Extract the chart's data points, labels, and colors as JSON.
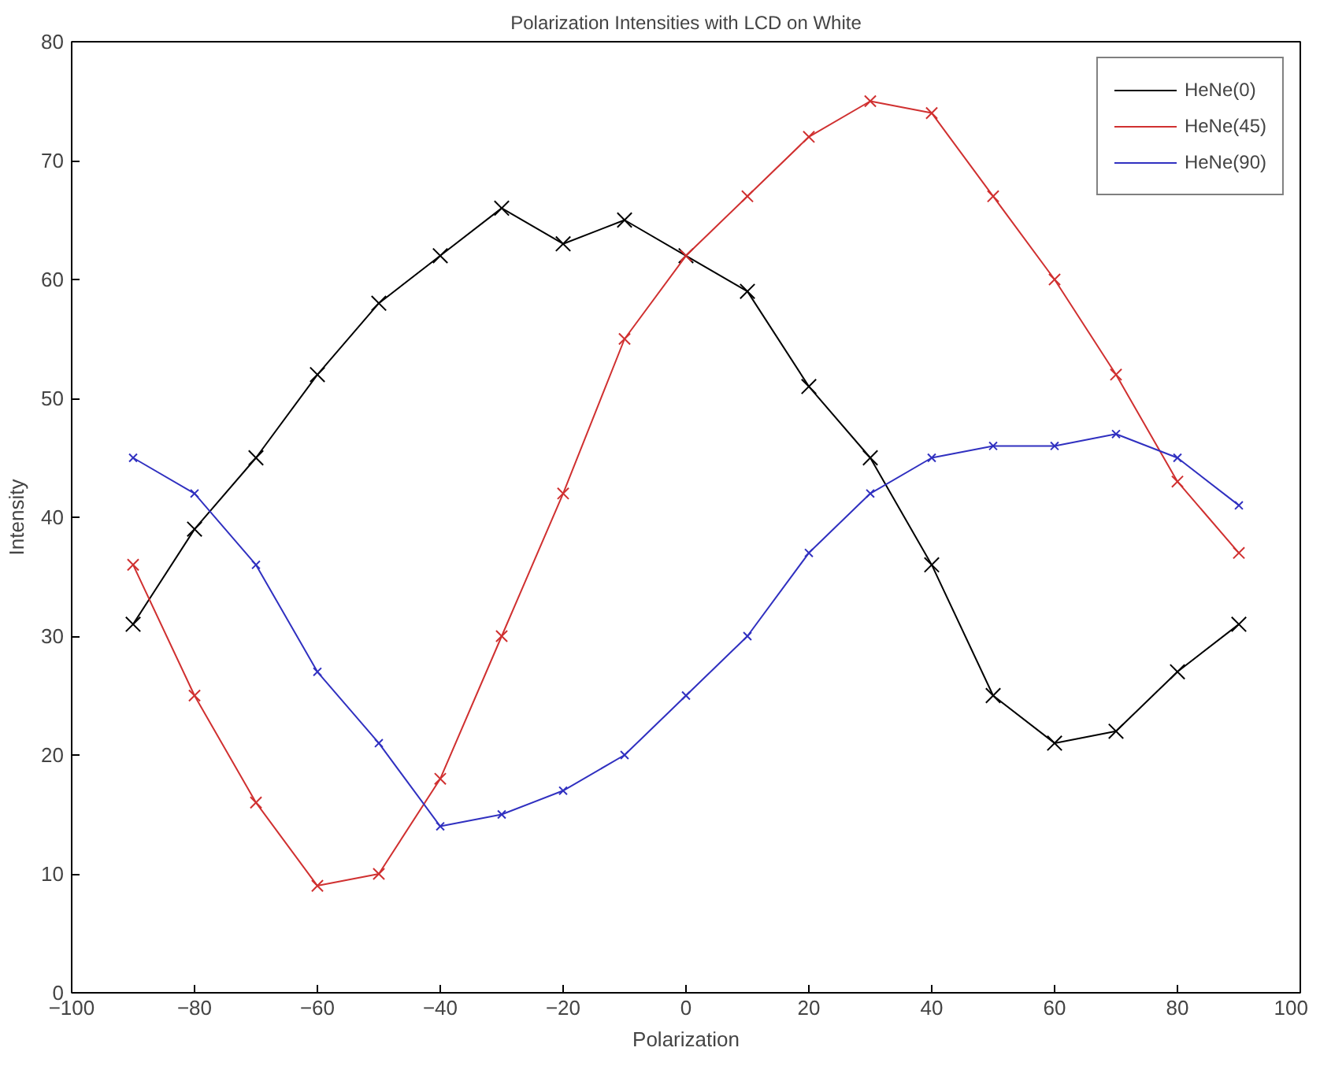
{
  "chart_data": {
    "type": "line",
    "title": "Polarization Intensities with LCD on White",
    "xlabel": "Polarization",
    "ylabel": "Intensity",
    "x": [
      -90,
      -80,
      -70,
      -60,
      -50,
      -40,
      -30,
      -20,
      -10,
      0,
      10,
      20,
      30,
      40,
      50,
      60,
      70,
      80,
      90
    ],
    "series": [
      {
        "name": "HeNe(0)",
        "color": "#000000",
        "values": [
          31,
          39,
          45,
          52,
          58,
          62,
          66,
          63,
          65,
          62,
          59,
          51,
          45,
          36,
          25,
          21,
          22,
          27,
          31
        ]
      },
      {
        "name": "HeNe(45)",
        "color": "#d03030",
        "values": [
          36,
          25,
          16,
          9,
          10,
          18,
          30,
          42,
          55,
          62,
          67,
          72,
          75,
          74,
          67,
          60,
          52,
          43,
          37
        ]
      },
      {
        "name": "HeNe(90)",
        "color": "#3030c0",
        "values": [
          45,
          42,
          36,
          27,
          21,
          14,
          15,
          17,
          20,
          25,
          30,
          37,
          42,
          45,
          46,
          46,
          47,
          45,
          41
        ]
      }
    ],
    "xlim": [
      -100,
      100
    ],
    "xticks": [
      -100,
      -80,
      -60,
      -40,
      -20,
      0,
      20,
      40,
      60,
      80,
      100
    ],
    "ylim": [
      0,
      80
    ],
    "yticks": [
      0,
      10,
      20,
      30,
      40,
      50,
      60,
      70,
      80
    ],
    "grid": false,
    "legend": "top right",
    "marker": "cross",
    "line_style": "solid"
  }
}
